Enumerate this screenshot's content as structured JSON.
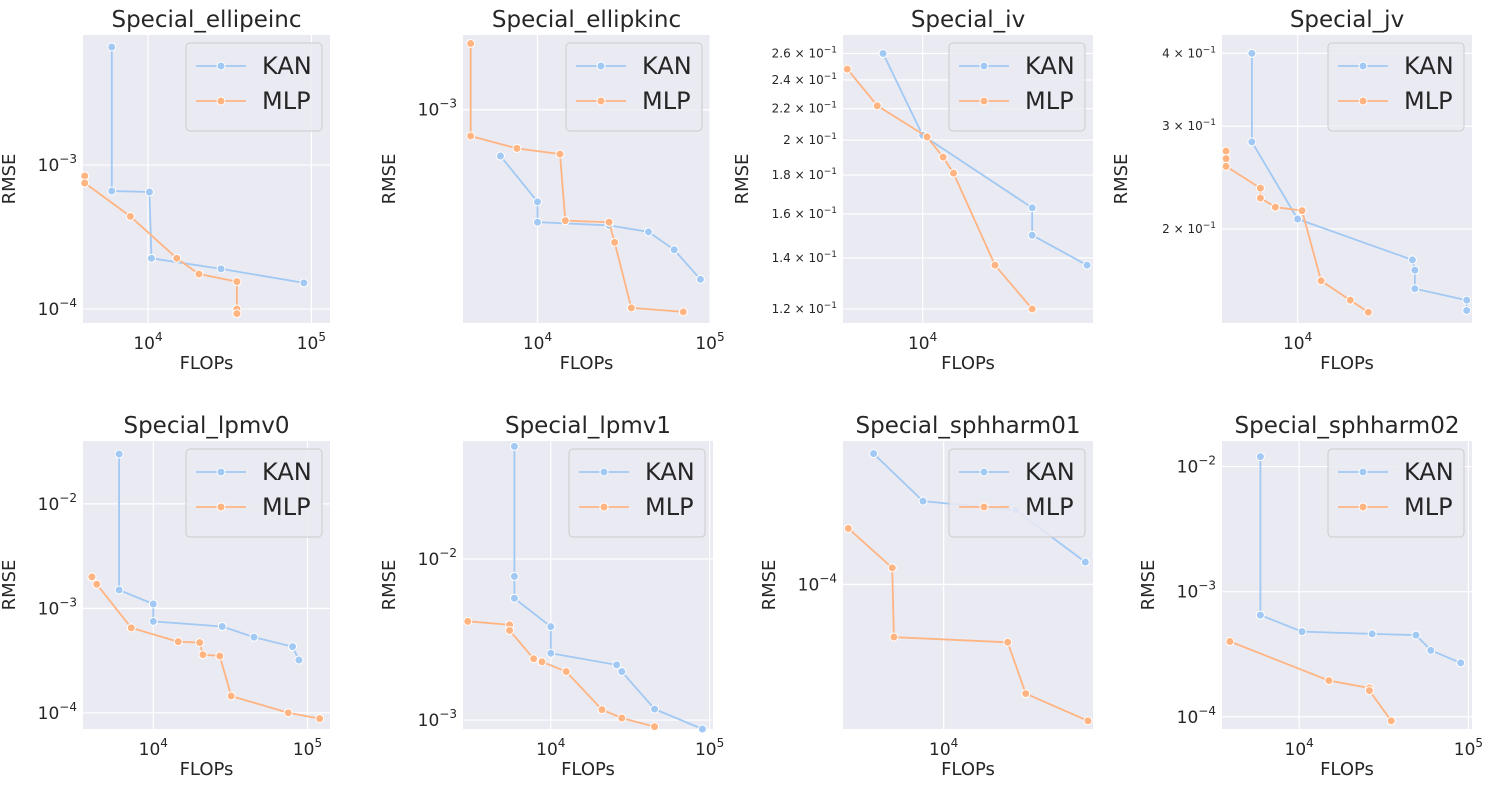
{
  "chart_data": [
    {
      "type": "line",
      "title": "Special_ellipeinc",
      "xlabel": "FLOPs",
      "ylabel": "RMSE",
      "xscale": "log",
      "yscale": "log",
      "xlim": [
        4000,
        130000
      ],
      "ylim": [
        8e-05,
        0.008
      ],
      "xticks": [
        {
          "value": 10000,
          "base": "10",
          "exp": "4"
        },
        {
          "value": 100000,
          "base": "10",
          "exp": "5"
        }
      ],
      "yticks": [
        {
          "value": 0.0001,
          "base": "10",
          "exp": "−4"
        },
        {
          "value": 0.001,
          "base": "10",
          "exp": "−3"
        }
      ],
      "legend": "top-right",
      "series": [
        {
          "name": "KAN",
          "color": "#a1c9f4",
          "x": [
            6000,
            6000,
            10200,
            10500,
            28000,
            90000
          ],
          "y": [
            0.0066,
            0.00066,
            0.00065,
            0.000225,
            0.00019,
            0.000152
          ]
        },
        {
          "name": "MLP",
          "color": "#ffb482",
          "x": [
            4100,
            4100,
            7800,
            15000,
            20500,
            35000,
            35000,
            35000
          ],
          "y": [
            0.00084,
            0.00075,
            0.00044,
            0.000225,
            0.000175,
            0.000155,
            0.0001,
            9.3e-05
          ]
        }
      ]
    },
    {
      "type": "line",
      "title": "Special_ellipkinc",
      "xlabel": "FLOPs",
      "ylabel": "RMSE",
      "xscale": "log",
      "yscale": "log",
      "xlim": [
        3700,
        100000
      ],
      "ylim": [
        0.00022,
        0.0017
      ],
      "xticks": [
        {
          "value": 10000,
          "base": "10",
          "exp": "4"
        },
        {
          "value": 100000,
          "base": "10",
          "exp": "5"
        }
      ],
      "yticks": [
        {
          "value": 0.001,
          "base": "10",
          "exp": "−3"
        }
      ],
      "legend": "top-right",
      "series": [
        {
          "name": "KAN",
          "color": "#a1c9f4",
          "x": [
            6100,
            10000,
            10000,
            26000,
            44000,
            62000,
            88000
          ],
          "y": [
            0.00072,
            0.00052,
            0.00045,
            0.00044,
            0.00042,
            0.00037,
            0.0003
          ]
        },
        {
          "name": "MLP",
          "color": "#ffb482",
          "x": [
            4100,
            4100,
            7600,
            13500,
            14500,
            26000,
            28000,
            35000,
            70000
          ],
          "y": [
            0.0016,
            0.00083,
            0.00076,
            0.00073,
            0.000455,
            0.00045,
            0.00039,
            0.000245,
            0.000238
          ]
        }
      ]
    },
    {
      "type": "line",
      "title": "Special_iv",
      "xlabel": "FLOPs",
      "ylabel": "RMSE",
      "xscale": "log",
      "yscale": "log",
      "xlim": [
        4200,
        64000
      ],
      "ylim": [
        0.115,
        0.275
      ],
      "xticks": [
        {
          "value": 10000,
          "base": "10",
          "exp": "4"
        }
      ],
      "yticks": [
        {
          "value": 0.12,
          "base": "1.2 × 10",
          "exp": "−1"
        },
        {
          "value": 0.14,
          "base": "1.4 × 10",
          "exp": "−1"
        },
        {
          "value": 0.16,
          "base": "1.6 × 10",
          "exp": "−1"
        },
        {
          "value": 0.18,
          "base": "1.8 × 10",
          "exp": "−1"
        },
        {
          "value": 0.2,
          "base": "2 × 10",
          "exp": "−1"
        },
        {
          "value": 0.22,
          "base": "2.2 × 10",
          "exp": "−1"
        },
        {
          "value": 0.24,
          "base": "2.4 × 10",
          "exp": "−1"
        },
        {
          "value": 0.26,
          "base": "2.6 × 10",
          "exp": "−1"
        }
      ],
      "legend": "top-right",
      "series": [
        {
          "name": "KAN",
          "color": "#a1c9f4",
          "x": [
            6500,
            10000,
            33000,
            33000,
            60000
          ],
          "y": [
            0.26,
            0.203,
            0.163,
            0.15,
            0.137
          ]
        },
        {
          "name": "MLP",
          "color": "#ffb482",
          "x": [
            4400,
            6100,
            10500,
            12500,
            14000,
            22000,
            33000
          ],
          "y": [
            0.248,
            0.222,
            0.202,
            0.19,
            0.181,
            0.137,
            0.12
          ]
        }
      ]
    },
    {
      "type": "line",
      "title": "Special_jv",
      "xlabel": "FLOPs",
      "ylabel": "RMSE",
      "xscale": "log",
      "yscale": "log",
      "xlim": [
        4300,
        70000
      ],
      "ylim": [
        0.138,
        0.43
      ],
      "xticks": [
        {
          "value": 10000,
          "base": "10",
          "exp": "4"
        }
      ],
      "yticks": [
        {
          "value": 0.2,
          "base": "2 × 10",
          "exp": "−1"
        },
        {
          "value": 0.3,
          "base": "3 × 10",
          "exp": "−1"
        },
        {
          "value": 0.4,
          "base": "4 × 10",
          "exp": "−1"
        }
      ],
      "legend": "top-right",
      "series": [
        {
          "name": "KAN",
          "color": "#a1c9f4",
          "x": [
            6000,
            6000,
            10000,
            36000,
            37000,
            37000,
            66000,
            66000
          ],
          "y": [
            0.4,
            0.282,
            0.208,
            0.177,
            0.17,
            0.158,
            0.151,
            0.145
          ]
        },
        {
          "name": "MLP",
          "color": "#ffb482",
          "x": [
            4500,
            4500,
            4500,
            6600,
            6600,
            7800,
            10500,
            13000,
            18000,
            22000
          ],
          "y": [
            0.272,
            0.264,
            0.256,
            0.235,
            0.226,
            0.218,
            0.215,
            0.163,
            0.151,
            0.144
          ]
        }
      ]
    },
    {
      "type": "line",
      "title": "Special_lpmv0",
      "xlabel": "FLOPs",
      "ylabel": "RMSE",
      "xscale": "log",
      "yscale": "log",
      "xlim": [
        3500,
        140000
      ],
      "ylim": [
        7e-05,
        0.04
      ],
      "xticks": [
        {
          "value": 10000,
          "base": "10",
          "exp": "4"
        },
        {
          "value": 100000,
          "base": "10",
          "exp": "5"
        }
      ],
      "yticks": [
        {
          "value": 0.0001,
          "base": "10",
          "exp": "−4"
        },
        {
          "value": 0.001,
          "base": "10",
          "exp": "−3"
        },
        {
          "value": 0.01,
          "base": "10",
          "exp": "−2"
        }
      ],
      "legend": "top-right",
      "series": [
        {
          "name": "KAN",
          "color": "#a1c9f4",
          "x": [
            6000,
            6000,
            10000,
            10000,
            28000,
            45000,
            80000,
            88000
          ],
          "y": [
            0.03,
            0.0015,
            0.0011,
            0.00075,
            0.00067,
            0.00053,
            0.00043,
            0.00032
          ]
        },
        {
          "name": "MLP",
          "color": "#ffb482",
          "x": [
            4000,
            4300,
            7200,
            14500,
            20000,
            21000,
            27000,
            32000,
            75000,
            120000
          ],
          "y": [
            0.002,
            0.0017,
            0.00065,
            0.00048,
            0.00047,
            0.00036,
            0.00035,
            0.000145,
            0.0001,
            8.8e-05
          ]
        }
      ]
    },
    {
      "type": "line",
      "title": "Special_lpmv1",
      "xlabel": "FLOPs",
      "ylabel": "RMSE",
      "xscale": "log",
      "yscale": "log",
      "xlim": [
        2800,
        105000
      ],
      "ylim": [
        0.00088,
        0.054
      ],
      "xticks": [
        {
          "value": 10000,
          "base": "10",
          "exp": "4"
        },
        {
          "value": 100000,
          "base": "10",
          "exp": "5"
        }
      ],
      "yticks": [
        {
          "value": 0.001,
          "base": "10",
          "exp": "−3"
        },
        {
          "value": 0.01,
          "base": "10",
          "exp": "−2"
        }
      ],
      "legend": "top-right",
      "series": [
        {
          "name": "KAN",
          "color": "#a1c9f4",
          "x": [
            5900,
            5900,
            5900,
            10000,
            10000,
            26000,
            28000,
            45000,
            90000
          ],
          "y": [
            0.05,
            0.0078,
            0.0057,
            0.0038,
            0.0026,
            0.0022,
            0.002,
            0.00117,
            0.00088
          ]
        },
        {
          "name": "MLP",
          "color": "#ffb482",
          "x": [
            3000,
            5500,
            5500,
            7800,
            8800,
            12500,
            21000,
            28000,
            45000
          ],
          "y": [
            0.0041,
            0.0039,
            0.0036,
            0.0024,
            0.0023,
            0.002,
            0.00116,
            0.00103,
            0.00091
          ]
        }
      ]
    },
    {
      "type": "line",
      "title": "Special_sphharm01",
      "xlabel": "FLOPs",
      "ylabel": "RMSE",
      "xscale": "log",
      "yscale": "log",
      "xlim": [
        3800,
        42000
      ],
      "ylim": [
        2.35e-05,
        0.00042
      ],
      "xticks": [
        {
          "value": 10000,
          "base": "10",
          "exp": "4"
        }
      ],
      "yticks": [
        {
          "value": 0.0001,
          "base": "10",
          "exp": "−4"
        }
      ],
      "legend": "top-right",
      "series": [
        {
          "name": "KAN",
          "color": "#a1c9f4",
          "x": [
            5100,
            8200,
            20000,
            39000
          ],
          "y": [
            0.00037,
            0.00023,
            0.00021,
            0.000125
          ]
        },
        {
          "name": "MLP",
          "color": "#ffb482",
          "x": [
            4000,
            6100,
            6200,
            18500,
            22000,
            40000
          ],
          "y": [
            0.000175,
            0.000118,
            5.9e-05,
            5.6e-05,
            3.35e-05,
            2.55e-05
          ]
        }
      ]
    },
    {
      "type": "line",
      "title": "Special_sphharm02",
      "xlabel": "FLOPs",
      "ylabel": "RMSE",
      "xscale": "log",
      "yscale": "log",
      "xlim": [
        3500,
        105000
      ],
      "ylim": [
        8e-05,
        0.016
      ],
      "xticks": [
        {
          "value": 10000,
          "base": "10",
          "exp": "4"
        },
        {
          "value": 100000,
          "base": "10",
          "exp": "5"
        }
      ],
      "yticks": [
        {
          "value": 0.0001,
          "base": "10",
          "exp": "−4"
        },
        {
          "value": 0.001,
          "base": "10",
          "exp": "−3"
        },
        {
          "value": 0.01,
          "base": "10",
          "exp": "−2"
        }
      ],
      "legend": "top-right",
      "series": [
        {
          "name": "KAN",
          "color": "#a1c9f4",
          "x": [
            5900,
            5900,
            10400,
            27000,
            49000,
            60000,
            90000
          ],
          "y": [
            0.012,
            0.00065,
            0.00048,
            0.00046,
            0.00045,
            0.00034,
            0.00027
          ]
        },
        {
          "name": "MLP",
          "color": "#ffb482",
          "x": [
            3900,
            15000,
            26000,
            26000,
            35000
          ],
          "y": [
            0.0004,
            0.000195,
            0.00017,
            0.000162,
            9.3e-05
          ]
        }
      ]
    }
  ]
}
